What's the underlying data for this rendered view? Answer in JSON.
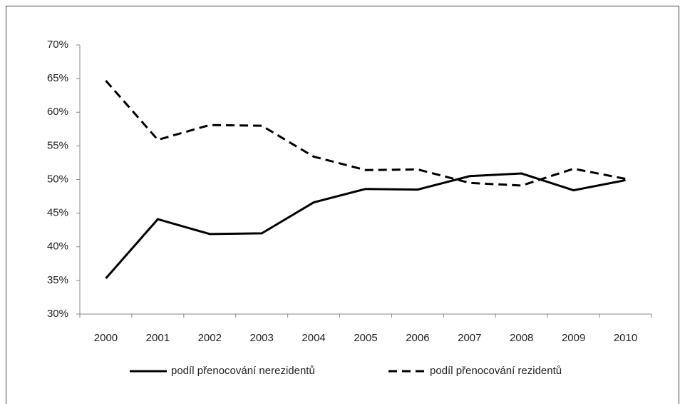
{
  "chart_data": {
    "type": "line",
    "categories": [
      "2000",
      "2001",
      "2002",
      "2003",
      "2004",
      "2005",
      "2006",
      "2007",
      "2008",
      "2009",
      "2010"
    ],
    "series": [
      {
        "name": "podíl přenocování nerezidentů",
        "color": "#000000",
        "style": "solid",
        "values": [
          35.3,
          44.1,
          41.9,
          42.0,
          46.6,
          48.6,
          48.5,
          50.5,
          50.9,
          48.4,
          49.9
        ]
      },
      {
        "name": "podíl přenocování rezidentů",
        "color": "#000000",
        "style": "dashed",
        "values": [
          64.7,
          55.9,
          58.1,
          58.0,
          53.4,
          51.4,
          51.5,
          49.5,
          49.1,
          51.6,
          50.1
        ]
      }
    ],
    "ylim": [
      30,
      70
    ],
    "yticks": [
      {
        "value": 30,
        "label": "30%"
      },
      {
        "value": 35,
        "label": "35%"
      },
      {
        "value": 40,
        "label": "40%"
      },
      {
        "value": 45,
        "label": "45%"
      },
      {
        "value": 50,
        "label": "50%"
      },
      {
        "value": 55,
        "label": "55%"
      },
      {
        "value": 60,
        "label": "60%"
      },
      {
        "value": 65,
        "label": "65%"
      },
      {
        "value": 70,
        "label": "70%"
      }
    ],
    "grid": false,
    "legend": "bottom"
  }
}
